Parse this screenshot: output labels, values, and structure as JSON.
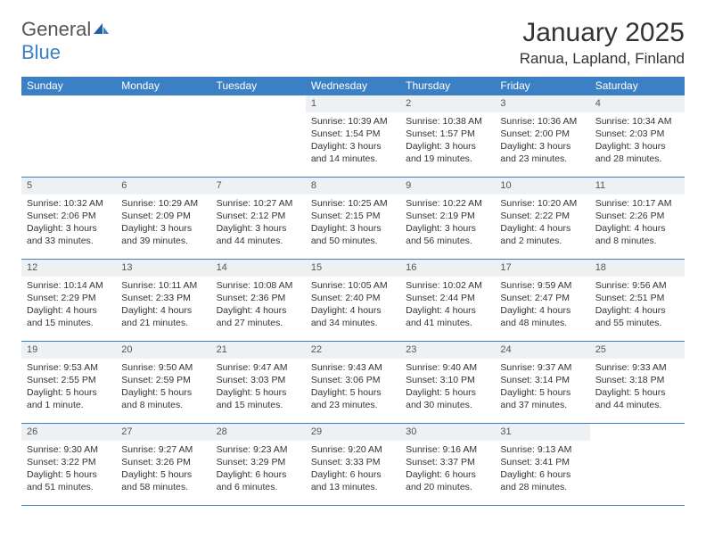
{
  "logo": {
    "part1": "General",
    "part2": "Blue"
  },
  "title": "January 2025",
  "location": "Ranua, Lapland, Finland",
  "colors": {
    "header_bg": "#3b7fc4",
    "header_text": "#ffffff",
    "daynum_bg": "#eef1f3",
    "border": "#3b7fc4",
    "logo_gray": "#555555",
    "logo_blue": "#3b7fc4",
    "body_text": "#333333"
  },
  "weekdays": [
    "Sunday",
    "Monday",
    "Tuesday",
    "Wednesday",
    "Thursday",
    "Friday",
    "Saturday"
  ],
  "weeks": [
    [
      null,
      null,
      null,
      {
        "n": "1",
        "sr": "Sunrise: 10:39 AM",
        "ss": "Sunset: 1:54 PM",
        "d1": "Daylight: 3 hours",
        "d2": "and 14 minutes."
      },
      {
        "n": "2",
        "sr": "Sunrise: 10:38 AM",
        "ss": "Sunset: 1:57 PM",
        "d1": "Daylight: 3 hours",
        "d2": "and 19 minutes."
      },
      {
        "n": "3",
        "sr": "Sunrise: 10:36 AM",
        "ss": "Sunset: 2:00 PM",
        "d1": "Daylight: 3 hours",
        "d2": "and 23 minutes."
      },
      {
        "n": "4",
        "sr": "Sunrise: 10:34 AM",
        "ss": "Sunset: 2:03 PM",
        "d1": "Daylight: 3 hours",
        "d2": "and 28 minutes."
      }
    ],
    [
      {
        "n": "5",
        "sr": "Sunrise: 10:32 AM",
        "ss": "Sunset: 2:06 PM",
        "d1": "Daylight: 3 hours",
        "d2": "and 33 minutes."
      },
      {
        "n": "6",
        "sr": "Sunrise: 10:29 AM",
        "ss": "Sunset: 2:09 PM",
        "d1": "Daylight: 3 hours",
        "d2": "and 39 minutes."
      },
      {
        "n": "7",
        "sr": "Sunrise: 10:27 AM",
        "ss": "Sunset: 2:12 PM",
        "d1": "Daylight: 3 hours",
        "d2": "and 44 minutes."
      },
      {
        "n": "8",
        "sr": "Sunrise: 10:25 AM",
        "ss": "Sunset: 2:15 PM",
        "d1": "Daylight: 3 hours",
        "d2": "and 50 minutes."
      },
      {
        "n": "9",
        "sr": "Sunrise: 10:22 AM",
        "ss": "Sunset: 2:19 PM",
        "d1": "Daylight: 3 hours",
        "d2": "and 56 minutes."
      },
      {
        "n": "10",
        "sr": "Sunrise: 10:20 AM",
        "ss": "Sunset: 2:22 PM",
        "d1": "Daylight: 4 hours",
        "d2": "and 2 minutes."
      },
      {
        "n": "11",
        "sr": "Sunrise: 10:17 AM",
        "ss": "Sunset: 2:26 PM",
        "d1": "Daylight: 4 hours",
        "d2": "and 8 minutes."
      }
    ],
    [
      {
        "n": "12",
        "sr": "Sunrise: 10:14 AM",
        "ss": "Sunset: 2:29 PM",
        "d1": "Daylight: 4 hours",
        "d2": "and 15 minutes."
      },
      {
        "n": "13",
        "sr": "Sunrise: 10:11 AM",
        "ss": "Sunset: 2:33 PM",
        "d1": "Daylight: 4 hours",
        "d2": "and 21 minutes."
      },
      {
        "n": "14",
        "sr": "Sunrise: 10:08 AM",
        "ss": "Sunset: 2:36 PM",
        "d1": "Daylight: 4 hours",
        "d2": "and 27 minutes."
      },
      {
        "n": "15",
        "sr": "Sunrise: 10:05 AM",
        "ss": "Sunset: 2:40 PM",
        "d1": "Daylight: 4 hours",
        "d2": "and 34 minutes."
      },
      {
        "n": "16",
        "sr": "Sunrise: 10:02 AM",
        "ss": "Sunset: 2:44 PM",
        "d1": "Daylight: 4 hours",
        "d2": "and 41 minutes."
      },
      {
        "n": "17",
        "sr": "Sunrise: 9:59 AM",
        "ss": "Sunset: 2:47 PM",
        "d1": "Daylight: 4 hours",
        "d2": "and 48 minutes."
      },
      {
        "n": "18",
        "sr": "Sunrise: 9:56 AM",
        "ss": "Sunset: 2:51 PM",
        "d1": "Daylight: 4 hours",
        "d2": "and 55 minutes."
      }
    ],
    [
      {
        "n": "19",
        "sr": "Sunrise: 9:53 AM",
        "ss": "Sunset: 2:55 PM",
        "d1": "Daylight: 5 hours",
        "d2": "and 1 minute."
      },
      {
        "n": "20",
        "sr": "Sunrise: 9:50 AM",
        "ss": "Sunset: 2:59 PM",
        "d1": "Daylight: 5 hours",
        "d2": "and 8 minutes."
      },
      {
        "n": "21",
        "sr": "Sunrise: 9:47 AM",
        "ss": "Sunset: 3:03 PM",
        "d1": "Daylight: 5 hours",
        "d2": "and 15 minutes."
      },
      {
        "n": "22",
        "sr": "Sunrise: 9:43 AM",
        "ss": "Sunset: 3:06 PM",
        "d1": "Daylight: 5 hours",
        "d2": "and 23 minutes."
      },
      {
        "n": "23",
        "sr": "Sunrise: 9:40 AM",
        "ss": "Sunset: 3:10 PM",
        "d1": "Daylight: 5 hours",
        "d2": "and 30 minutes."
      },
      {
        "n": "24",
        "sr": "Sunrise: 9:37 AM",
        "ss": "Sunset: 3:14 PM",
        "d1": "Daylight: 5 hours",
        "d2": "and 37 minutes."
      },
      {
        "n": "25",
        "sr": "Sunrise: 9:33 AM",
        "ss": "Sunset: 3:18 PM",
        "d1": "Daylight: 5 hours",
        "d2": "and 44 minutes."
      }
    ],
    [
      {
        "n": "26",
        "sr": "Sunrise: 9:30 AM",
        "ss": "Sunset: 3:22 PM",
        "d1": "Daylight: 5 hours",
        "d2": "and 51 minutes."
      },
      {
        "n": "27",
        "sr": "Sunrise: 9:27 AM",
        "ss": "Sunset: 3:26 PM",
        "d1": "Daylight: 5 hours",
        "d2": "and 58 minutes."
      },
      {
        "n": "28",
        "sr": "Sunrise: 9:23 AM",
        "ss": "Sunset: 3:29 PM",
        "d1": "Daylight: 6 hours",
        "d2": "and 6 minutes."
      },
      {
        "n": "29",
        "sr": "Sunrise: 9:20 AM",
        "ss": "Sunset: 3:33 PM",
        "d1": "Daylight: 6 hours",
        "d2": "and 13 minutes."
      },
      {
        "n": "30",
        "sr": "Sunrise: 9:16 AM",
        "ss": "Sunset: 3:37 PM",
        "d1": "Daylight: 6 hours",
        "d2": "and 20 minutes."
      },
      {
        "n": "31",
        "sr": "Sunrise: 9:13 AM",
        "ss": "Sunset: 3:41 PM",
        "d1": "Daylight: 6 hours",
        "d2": "and 28 minutes."
      },
      null
    ]
  ]
}
